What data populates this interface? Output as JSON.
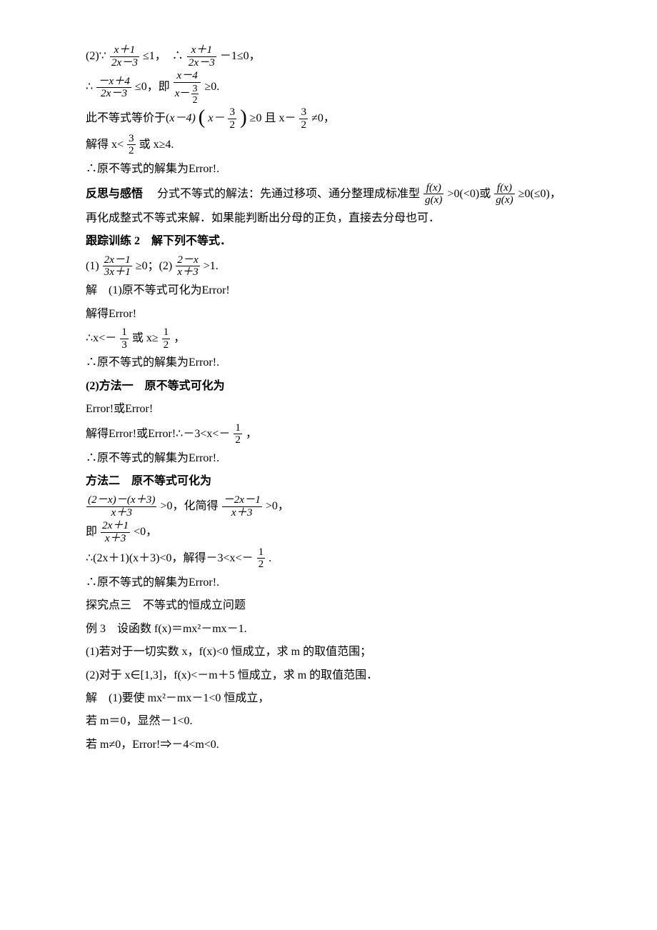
{
  "l1a": "(2)∵",
  "l1f1n": "x＋1",
  "l1f1d": "2x－3",
  "l1b": "≤1，　∴",
  "l1f2n": "x＋1",
  "l1f2d": "2x－3",
  "l1c": "－1≤0，",
  "l2a": "∴",
  "l2f1n": "－x＋4",
  "l2f1d": "2x－3",
  "l2b": "≤0，即",
  "l2f2n": "x－4",
  "l2f2dn": "3",
  "l2f2dd": "2",
  "l2c": "≥0.",
  "l3a": "此不等式等价于(",
  "l3b": "x－4)",
  "l3c": "x－",
  "l3f1n": "3",
  "l3f1d": "2",
  "l3d": "≥0 且 x－",
  "l3f2n": "3",
  "l3f2d": "2",
  "l3e": "≠0，",
  "l4a": "解得 x<",
  "l4f1n": "3",
  "l4f1d": "2",
  "l4b": "或 x≥4.",
  "l5": "∴原不等式的解集为Error!.",
  "l6a": "反思与感悟",
  "l6b": "　分式不等式的解法：先通过移项、通分整理成标准型",
  "l6f1n": "f(x)",
  "l6f1d": "g(x)",
  "l6c": ">0(<0)或",
  "l6f2n": "f(x)",
  "l6f2d": "g(x)",
  "l6d": "≥0(≤0)，",
  "l7": "再化成整式不等式来解．如果能判断出分母的正负，直接去分母也可．",
  "l8": "跟踪训练 2　解下列不等式．",
  "l9a": "(1)",
  "l9f1n": "2x－1",
  "l9f1d": "3x＋1",
  "l9b": "≥0；(2)",
  "l9f2n": "2－x",
  "l9f2d": "x＋3",
  "l9c": ">1.",
  "l10": "解　(1)原不等式可化为Error!",
  "l11": "解得Error!",
  "l12a": "∴x<－",
  "l12f1n": "1",
  "l12f1d": "3",
  "l12b": "或 x≥",
  "l12f2n": "1",
  "l12f2d": "2",
  "l12c": "，",
  "l13": "∴原不等式的解集为Error!.",
  "l14": "(2)方法一　原不等式可化为",
  "l15": "Error!或Error!",
  "l16a": "解得Error!或Error!∴－3<x<－",
  "l16f1n": "1",
  "l16f1d": "2",
  "l16b": "，",
  "l17": "∴原不等式的解集为Error!.",
  "l18": "方法二　原不等式可化为",
  "l19a": "",
  "l19f1n": "(2－x)－(x＋3)",
  "l19f1d": "x＋3",
  "l19b": ">0，化简得",
  "l19f2n": "－2x－1",
  "l19f2d": "x＋3",
  "l19c": ">0，",
  "l20a": "即",
  "l20f1n": "2x＋1",
  "l20f1d": "x＋3",
  "l20b": "<0，",
  "l21a": "∴(2x＋1)(x＋3)<0，解得－3<x<－",
  "l21f1n": "1",
  "l21f1d": "2",
  "l21b": ".",
  "l22": "∴原不等式的解集为Error!.",
  "l23": "探究点三　不等式的恒成立问题",
  "l24": "例 3　设函数 f(x)＝mx²－mx－1.",
  "l25": "(1)若对于一切实数 x，f(x)<0 恒成立，求 m 的取值范围；",
  "l26": "(2)对于 x∈[1,3]，f(x)<－m＋5 恒成立，求 m 的取值范围．",
  "l27": "解　(1)要使 mx²－mx－1<0 恒成立，",
  "l28": "若 m＝0，显然－1<0.",
  "l29": "若 m≠0，Error!⇒－4<m<0."
}
